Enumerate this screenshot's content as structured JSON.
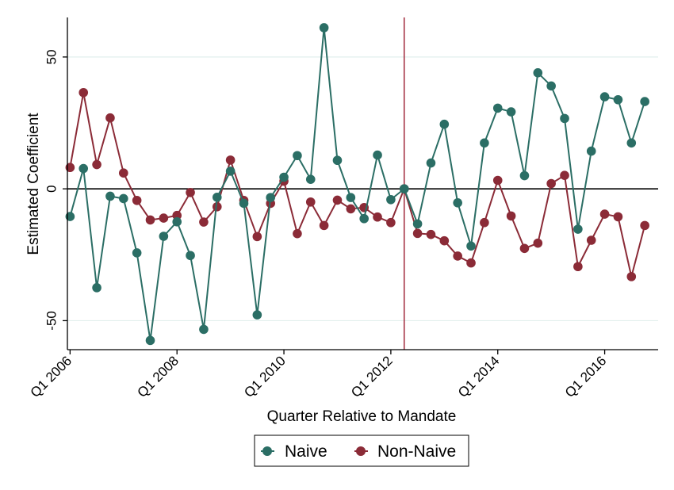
{
  "chart_data": {
    "type": "line",
    "xlabel": "Quarter Relative to Mandate",
    "ylabel": "Estimated Coefficient",
    "x_ticks": [
      "Q1 2006",
      "Q1 2008",
      "Q1 2010",
      "Q1 2012",
      "Q1 2014",
      "Q1 2016"
    ],
    "x_tick_quarter_index": [
      0,
      8,
      16,
      24,
      32,
      40
    ],
    "y_ticks": [
      -50,
      0,
      50
    ],
    "xlim": [
      -0.2,
      44
    ],
    "ylim": [
      -61,
      65
    ],
    "mandate_quarter_index": 25,
    "reference_line_y": 0,
    "grid": "horizontal",
    "legend_position": "bottom",
    "colors": {
      "naive": "#2b6e65",
      "non_naive": "#8b2b37",
      "mandate_line": "#9b1b2e",
      "grid": "#e2efed"
    },
    "series": [
      {
        "name": "Naive",
        "values": [
          -10.5,
          7.7,
          -37.5,
          -2.8,
          -3.7,
          -24.3,
          -57.5,
          -18.0,
          -12.5,
          -25.3,
          -53.3,
          -3.2,
          6.7,
          -5.5,
          -47.8,
          -3.3,
          4.4,
          12.6,
          3.6,
          61.1,
          10.8,
          -3.3,
          -11.3,
          12.8,
          -4.1,
          0.0,
          -13.3,
          9.8,
          24.5,
          -5.3,
          -21.7,
          17.4,
          30.6,
          29.2,
          5.0,
          44.0,
          39.0,
          26.7,
          -15.3,
          14.3,
          34.9,
          33.8,
          17.4,
          33.1
        ]
      },
      {
        "name": "Non-Naive",
        "values": [
          8.1,
          36.5,
          9.2,
          26.9,
          6.0,
          -4.4,
          -11.8,
          -11.1,
          -10.1,
          -1.4,
          -12.6,
          -6.8,
          10.9,
          -4.4,
          -18.1,
          -5.5,
          2.9,
          -17.0,
          -5.0,
          -13.9,
          -4.3,
          -7.6,
          -7.1,
          -10.7,
          -12.8,
          0.0,
          -16.9,
          -17.3,
          -19.7,
          -25.5,
          -28.1,
          -12.8,
          3.2,
          -10.3,
          -22.6,
          -20.6,
          2.0,
          5.1,
          -29.5,
          -19.5,
          -9.6,
          -10.6,
          -33.3,
          -13.9
        ]
      }
    ]
  }
}
